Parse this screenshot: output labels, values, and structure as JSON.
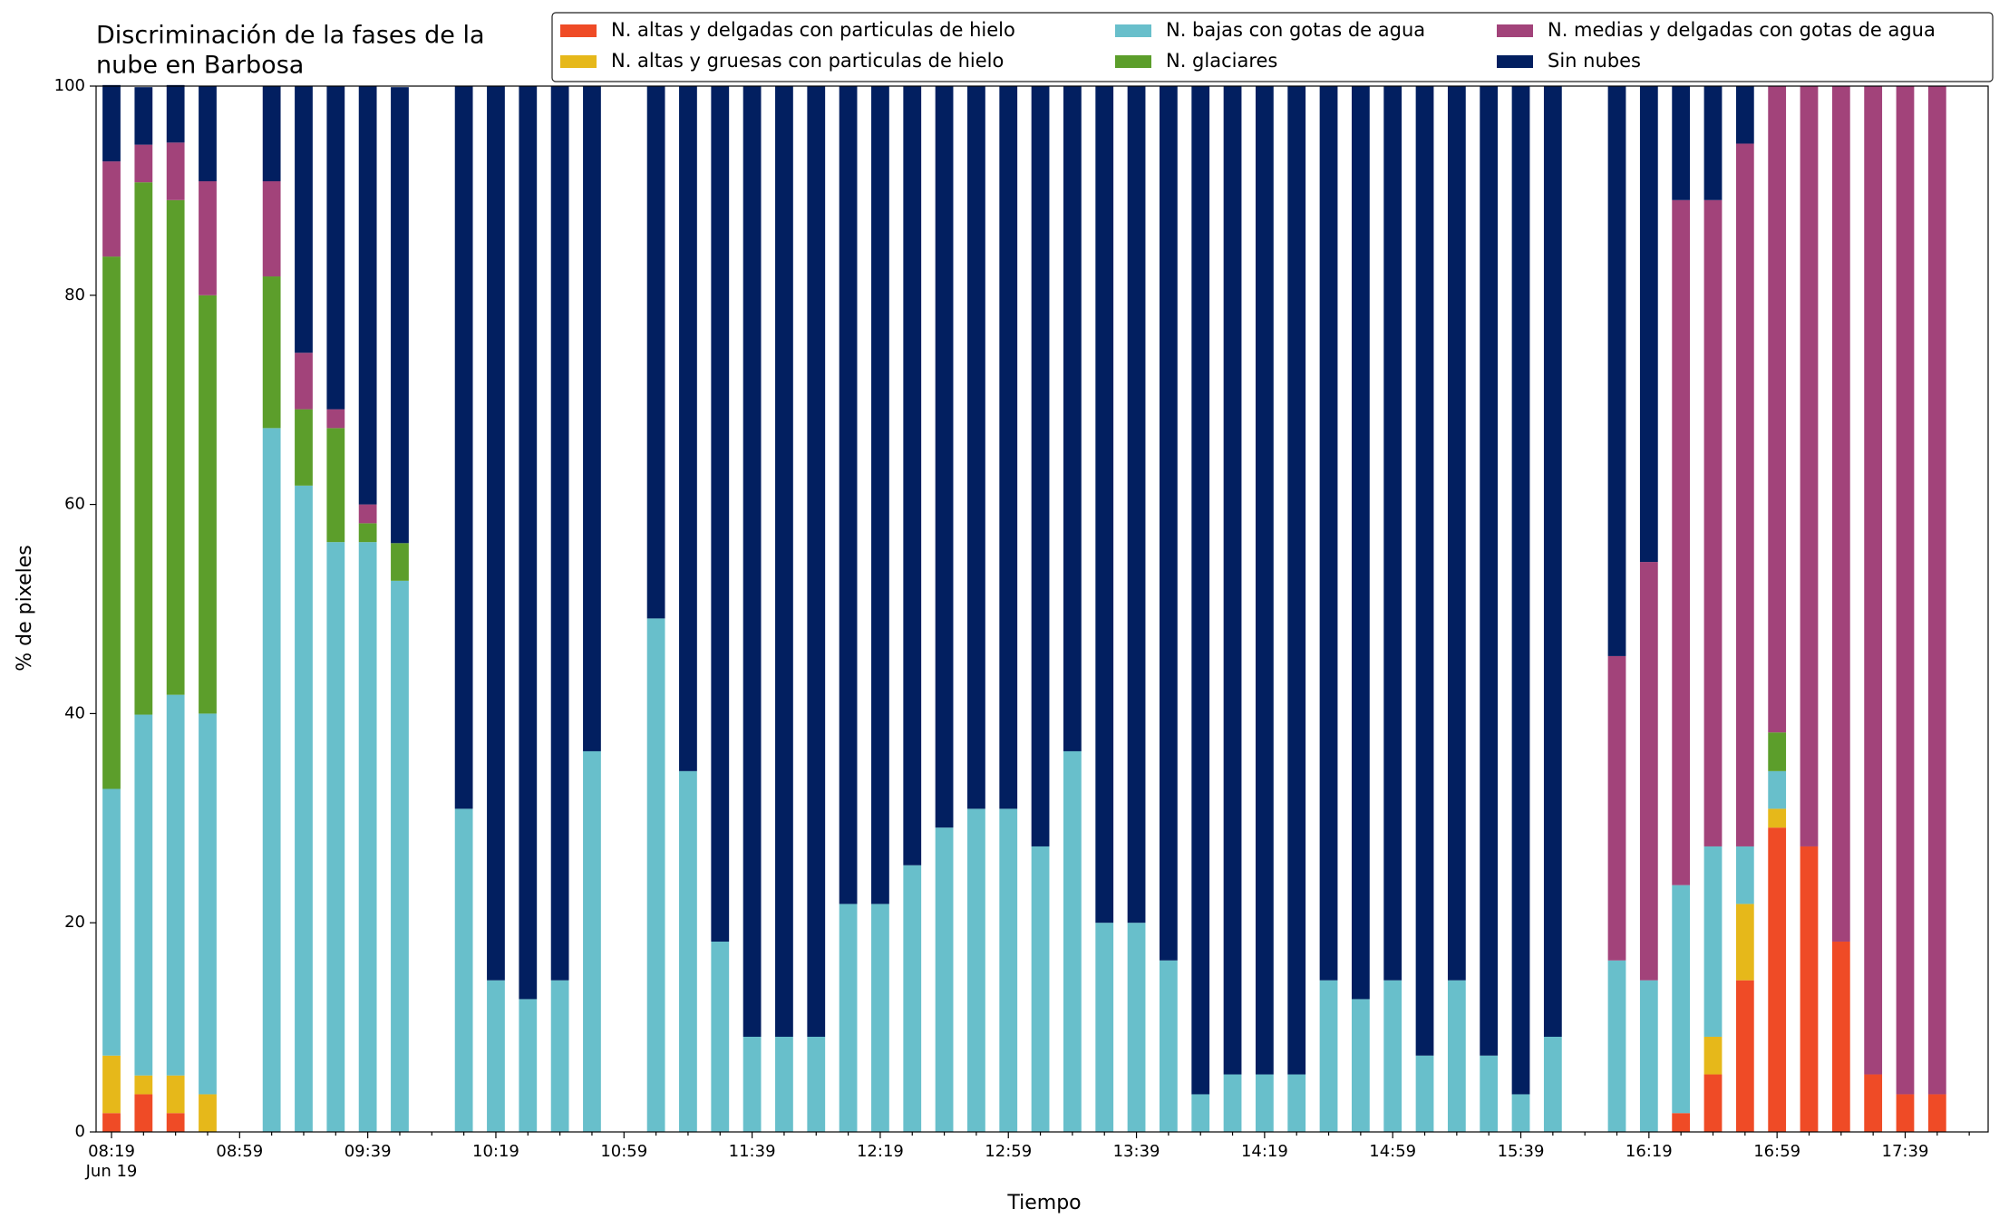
{
  "chart_data": {
    "type": "stacked_bar",
    "title": [
      "Discriminación de la fases de la",
      "nube en Barbosa"
    ],
    "xlabel": "Tiempo",
    "ylabel": "% de pixeles",
    "x_date_label": "Jun 19",
    "categories": [
      "08:19",
      null,
      null,
      null,
      "08:59",
      null,
      null,
      null,
      "09:39",
      null,
      null,
      null,
      "10:19",
      null,
      null,
      null,
      "10:59",
      null,
      null,
      null,
      "11:39",
      null,
      null,
      null,
      "12:19",
      null,
      null,
      null,
      "12:59",
      null,
      null,
      null,
      "13:39",
      null,
      null,
      null,
      "14:19",
      null,
      null,
      null,
      "14:59",
      null,
      null,
      null,
      "15:39",
      null,
      null,
      null,
      "16:19",
      null,
      null,
      null,
      "16:59",
      null,
      null,
      null,
      "17:39",
      null,
      null
    ],
    "ylim": [
      0,
      100
    ],
    "yticks": [
      0,
      20,
      40,
      60,
      80,
      100
    ],
    "grid": false,
    "series": [
      {
        "name": "N. altas y delgadas con particulas de hielo",
        "color": "#ef4b26",
        "values": [
          1.8,
          3.6,
          1.8,
          0,
          null,
          0,
          0,
          0,
          0,
          0,
          null,
          0,
          0,
          0,
          0,
          0,
          null,
          0,
          0,
          0,
          0,
          0,
          0,
          0,
          0,
          0,
          0,
          0,
          0,
          0,
          0,
          0,
          0,
          0,
          0,
          0,
          0,
          0,
          0,
          0,
          0,
          0,
          0,
          0,
          0,
          0,
          null,
          0,
          0,
          1.8,
          5.5,
          14.5,
          29.1,
          27.3,
          18.2,
          5.5,
          3.6,
          3.6,
          null
        ]
      },
      {
        "name": "N. altas y gruesas con particulas de hielo",
        "color": "#e6b81a",
        "values": [
          5.5,
          1.8,
          3.6,
          3.6,
          null,
          0,
          0,
          0,
          0,
          0,
          null,
          0,
          0,
          0,
          0,
          0,
          null,
          0,
          0,
          0,
          0,
          0,
          0,
          0,
          0,
          0,
          0,
          0,
          0,
          0,
          0,
          0,
          0,
          0,
          0,
          0,
          0,
          0,
          0,
          0,
          0,
          0,
          0,
          0,
          0,
          0,
          null,
          0,
          0,
          0,
          3.6,
          7.3,
          1.8,
          0,
          0,
          0,
          0,
          0,
          null
        ]
      },
      {
        "name": "N. bajas con gotas de agua",
        "color": "#68bfcb",
        "values": [
          25.5,
          34.5,
          36.4,
          36.4,
          null,
          67.3,
          61.8,
          56.4,
          56.4,
          52.7,
          null,
          30.9,
          14.5,
          12.7,
          14.5,
          36.4,
          null,
          49.1,
          34.5,
          18.2,
          9.1,
          9.1,
          9.1,
          21.8,
          21.8,
          25.5,
          29.1,
          30.9,
          30.9,
          27.3,
          36.4,
          20,
          20,
          16.4,
          3.6,
          5.5,
          5.5,
          5.5,
          14.5,
          12.7,
          14.5,
          7.3,
          14.5,
          7.3,
          3.6,
          9.1,
          null,
          16.4,
          14.5,
          21.8,
          18.2,
          5.5,
          3.6,
          0,
          0,
          0,
          0,
          0,
          null
        ]
      },
      {
        "name": "N. glaciares",
        "color": "#5c9e2b",
        "values": [
          50.9,
          50.9,
          47.3,
          40,
          null,
          14.5,
          7.3,
          10.9,
          1.8,
          3.6,
          null,
          0,
          0,
          0,
          0,
          0,
          null,
          0,
          0,
          0,
          0,
          0,
          0,
          0,
          0,
          0,
          0,
          0,
          0,
          0,
          0,
          0,
          0,
          0,
          0,
          0,
          0,
          0,
          0,
          0,
          0,
          0,
          0,
          0,
          0,
          0,
          null,
          0,
          0,
          0,
          0,
          0,
          3.7,
          0,
          0,
          0,
          0,
          0,
          null
        ]
      },
      {
        "name": "N. medias y delgadas con gotas de agua",
        "color": "#a2437a",
        "values": [
          9.1,
          3.6,
          5.5,
          10.9,
          null,
          9.1,
          5.4,
          1.8,
          1.8,
          0,
          null,
          0,
          0,
          0,
          0,
          0,
          null,
          0,
          0,
          0,
          0,
          0,
          0,
          0,
          0,
          0,
          0,
          0,
          0,
          0,
          0,
          0,
          0,
          0,
          0,
          0,
          0,
          0,
          0,
          0,
          0,
          0,
          0,
          0,
          0,
          0,
          null,
          29.1,
          40,
          65.5,
          61.8,
          67.2,
          61.8,
          72.7,
          81.8,
          94.5,
          96.4,
          96.4,
          null
        ]
      },
      {
        "name": "Sin nubes",
        "color": "#021f60",
        "values": [
          7.3,
          5.5,
          5.5,
          9.1,
          null,
          9.1,
          25.5,
          30.9,
          40,
          43.6,
          null,
          69.1,
          85.5,
          87.3,
          85.5,
          63.6,
          null,
          50.9,
          65.5,
          81.8,
          90.9,
          90.9,
          90.9,
          78.2,
          78.2,
          74.5,
          70.9,
          69.1,
          69.1,
          72.7,
          63.6,
          80,
          80,
          83.6,
          96.4,
          94.5,
          94.5,
          94.5,
          85.5,
          87.3,
          85.5,
          92.7,
          85.5,
          92.7,
          96.4,
          90.9,
          null,
          54.5,
          45.5,
          10.9,
          10.9,
          5.5,
          0,
          0,
          0,
          0,
          0,
          0,
          null
        ]
      }
    ]
  }
}
